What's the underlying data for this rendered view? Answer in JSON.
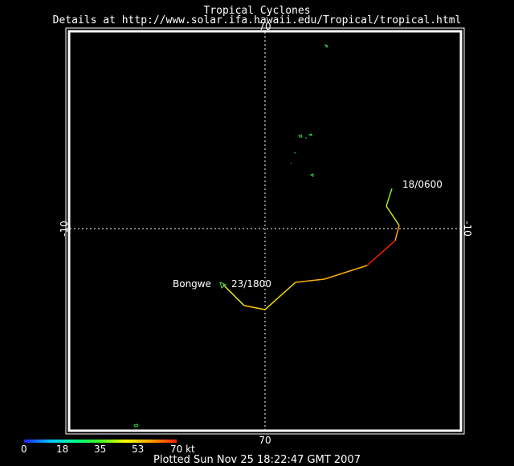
{
  "header": {
    "title": "Tropical Cyclones",
    "details": "Details at http://www.solar.ifa.hawaii.edu/Tropical/tropical.html"
  },
  "map": {
    "lon_tick": "70",
    "lat_tick": "-10",
    "storm": {
      "name": "Bongwe",
      "start_label": "18/0600",
      "end_label": "23/1800"
    }
  },
  "colorbar": {
    "labels": [
      "0",
      "18",
      "35",
      "53",
      "70 kt"
    ],
    "colors": [
      "#2020ff",
      "#00c0ff",
      "#00ff90",
      "#40ff20",
      "#ffff00",
      "#ffa000",
      "#ff2000"
    ]
  },
  "footer": {
    "plotted": "Plotted Sun Nov 25 18:22:47 GMT 2007"
  }
}
